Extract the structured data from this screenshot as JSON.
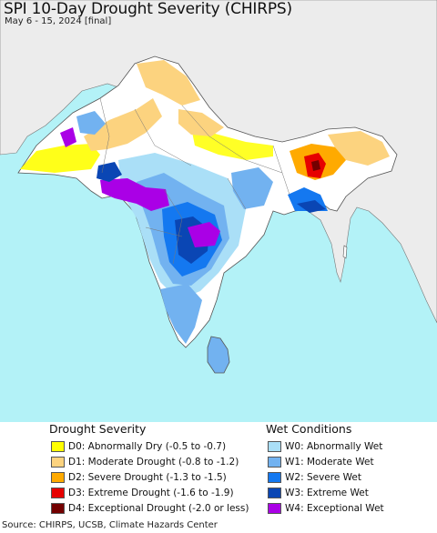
{
  "title": "SPI 10-Day Drought Severity (CHIRPS)",
  "subtitle": "May 6 - 15, 2024 [final]",
  "colors": {
    "ocean": "#b3f2f7",
    "land": "#ececec",
    "no_change": "#ffffff",
    "borders": "#555555"
  },
  "drought_legend": {
    "heading": "Drought Severity",
    "items": [
      {
        "code": "D0",
        "label": "D0: Abnormally Dry (-0.5 to -0.7)",
        "color": "#ffff00"
      },
      {
        "code": "D1",
        "label": "D1: Moderate Drought (-0.8 to -1.2)",
        "color": "#fcd37f"
      },
      {
        "code": "D2",
        "label": "D2: Severe Drought (-1.3 to -1.5)",
        "color": "#ffaa00"
      },
      {
        "code": "D3",
        "label": "D3: Extreme Drought (-1.6 to -1.9)",
        "color": "#e60000"
      },
      {
        "code": "D4",
        "label": "D4: Exceptional Drought (-2.0 or less)",
        "color": "#730000"
      }
    ]
  },
  "wet_legend": {
    "heading": "Wet Conditions",
    "items": [
      {
        "code": "W0",
        "label": "W0: Abnormally Wet",
        "color": "#aadff7"
      },
      {
        "code": "W1",
        "label": "W1: Moderate Wet",
        "color": "#72b2f0"
      },
      {
        "code": "W2",
        "label": "W2: Severe Wet",
        "color": "#1478f0"
      },
      {
        "code": "W3",
        "label": "W3: Extreme Wet",
        "color": "#0a46b4"
      },
      {
        "code": "W4",
        "label": "W4: Exceptional Wet",
        "color": "#aa00e6"
      }
    ]
  },
  "source": "Source: CHIRPS, UCSB, Climate Hazards Center"
}
